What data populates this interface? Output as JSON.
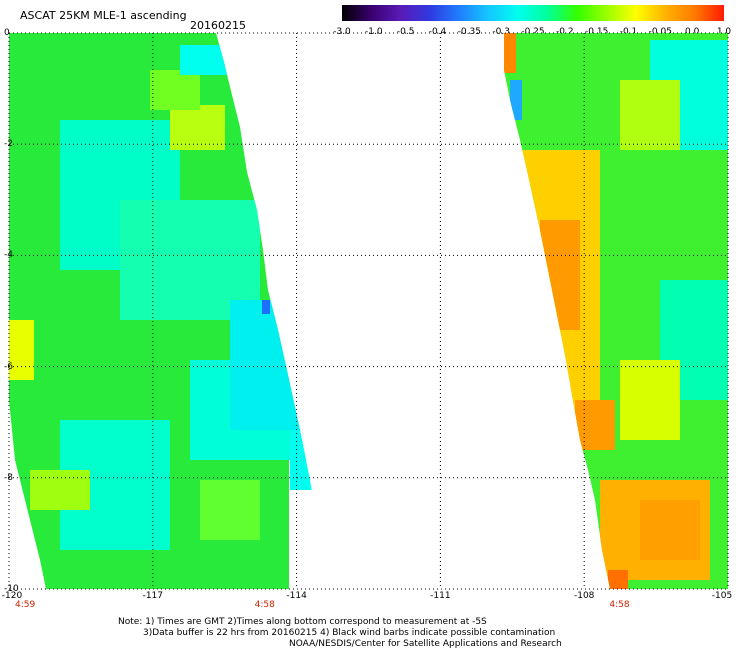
{
  "header": {
    "title": "ASCAT 25KM MLE-1 ascending",
    "date": "20160215"
  },
  "colorbar": {
    "labels": [
      "-3.0",
      "-1.0",
      "-0.5",
      "-0.4",
      "-0.35",
      "-0.3",
      "-0.25",
      "-0.2",
      "-0.15",
      "-0.1",
      "-0.05",
      "0.0",
      "1.0"
    ],
    "colors": [
      "#000000",
      "#3a0070",
      "#5a1ab8",
      "#2f3ae0",
      "#1f7fff",
      "#14c8ff",
      "#00ffee",
      "#00ff99",
      "#33ff00",
      "#99ff00",
      "#ffff00",
      "#ffb300",
      "#ff7a00",
      "#ff1a00"
    ]
  },
  "map": {
    "y_ticks": [
      "0",
      "-2",
      "-4",
      "-6",
      "-8",
      "-10"
    ],
    "x_ticks": [
      "-120",
      "-117",
      "-114",
      "-111",
      "-108",
      "-105"
    ],
    "x_range": [
      -120,
      -105
    ],
    "y_range": [
      -10,
      0
    ],
    "time_labels": [
      {
        "text": "4:59",
        "lon": -120
      },
      {
        "text": "4:58",
        "lon": -115
      },
      {
        "text": "4:58",
        "lon": -107.6
      }
    ]
  },
  "notes": {
    "line1": "Note: 1) Times are GMT 2)Times along bottom correspond to measurement at -5S",
    "line2": "3)Data buffer is 22 hrs from 20160215 4) Black wind barbs indicate possible contamination",
    "line3": "NOAA/NESDIS/Center for Satellite Applications and Research"
  }
}
